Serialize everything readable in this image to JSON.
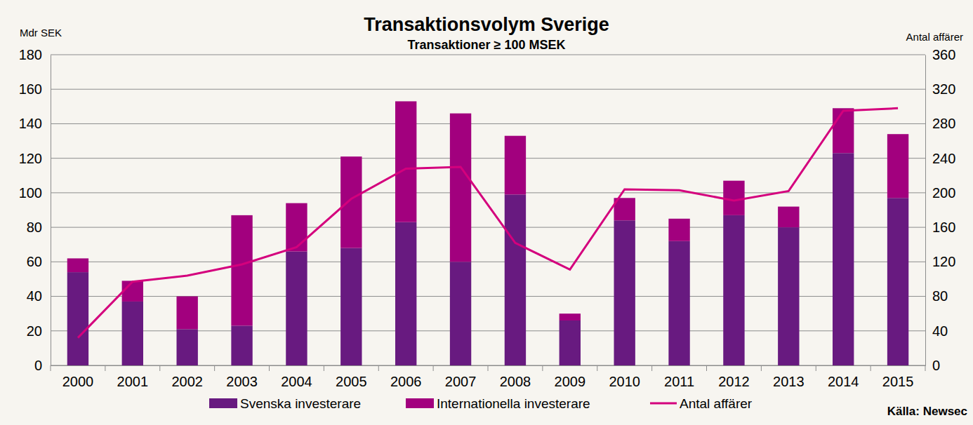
{
  "chart_data": {
    "type": "bar",
    "title": "Transaktionsvolym Sverige",
    "subtitle": "Transaktioner ≥ 100 MSEK",
    "ylabel": "Mdr SEK",
    "y2label": "Antal affärer",
    "annotation": "Källa: Newsec",
    "stacked": true,
    "grid": true,
    "legend": "bottom",
    "categories": [
      "2000",
      "2001",
      "2002",
      "2003",
      "2004",
      "2005",
      "2006",
      "2007",
      "2008",
      "2009",
      "2010",
      "2011",
      "2012",
      "2013",
      "2014",
      "2015"
    ],
    "ylim": [
      0,
      180
    ],
    "yticks": [
      0,
      20,
      40,
      60,
      80,
      100,
      120,
      140,
      160,
      180
    ],
    "y2lim": [
      0,
      360
    ],
    "y2ticks": [
      0,
      40,
      80,
      120,
      160,
      200,
      240,
      280,
      320,
      360
    ],
    "series": [
      {
        "name": "Svenska investerare",
        "type": "bar",
        "color": "#681a80",
        "values": [
          54,
          37,
          21,
          23,
          66,
          68,
          83,
          60,
          99,
          26,
          84,
          72,
          87,
          80,
          123,
          97
        ]
      },
      {
        "name": "Internationella investerare",
        "type": "bar",
        "color": "#a2007e",
        "values": [
          8,
          12,
          19,
          64,
          28,
          53,
          70,
          86,
          34,
          4,
          13,
          13,
          20,
          12,
          26,
          37
        ]
      },
      {
        "name": "Antal affärer",
        "type": "line",
        "axis": "y2",
        "color": "#d4007d",
        "line_style": "solid",
        "values": [
          32,
          97,
          104,
          117,
          137,
          193,
          228,
          230,
          142,
          111,
          204,
          203,
          191,
          202,
          295,
          298
        ]
      }
    ]
  }
}
